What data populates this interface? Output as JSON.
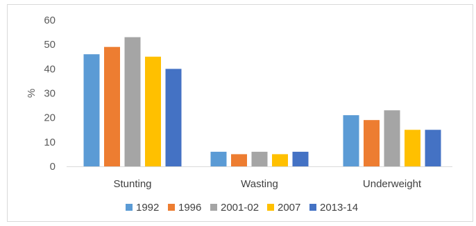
{
  "chart_data": {
    "type": "bar",
    "title": "",
    "xlabel": "",
    "ylabel": "%",
    "ylim": [
      0,
      60
    ],
    "yticks": [
      0,
      10,
      20,
      30,
      40,
      50,
      60
    ],
    "grid": false,
    "legend_position": "bottom",
    "categories": [
      "Stunting",
      "Wasting",
      "Underweight"
    ],
    "series": [
      {
        "name": "1992",
        "color": "#5b9bd5",
        "values": [
          46,
          6,
          21
        ]
      },
      {
        "name": "1996",
        "color": "#ed7d31",
        "values": [
          49,
          5,
          19
        ]
      },
      {
        "name": "2001-02",
        "color": "#a5a5a5",
        "values": [
          53,
          6,
          23
        ]
      },
      {
        "name": "2007",
        "color": "#ffc000",
        "values": [
          45,
          5,
          15
        ]
      },
      {
        "name": "2013-14",
        "color": "#4472c4",
        "values": [
          40,
          6,
          15
        ]
      }
    ]
  }
}
